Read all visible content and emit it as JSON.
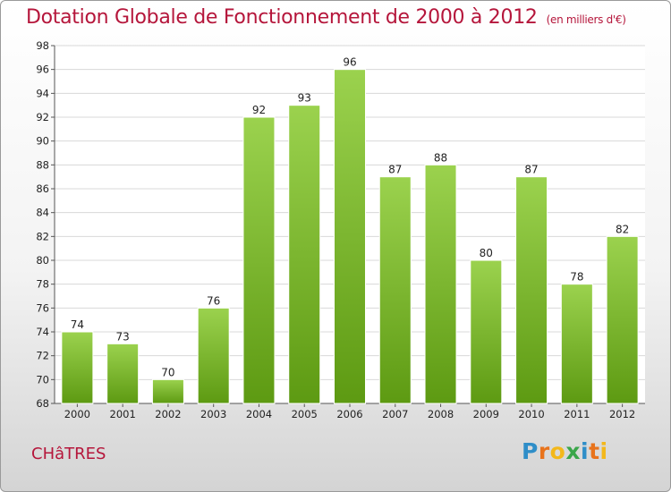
{
  "header": {
    "title": "Dotation Globale de Fonctionnement de 2000 à 2012",
    "subtitle": "(en milliers d'€)"
  },
  "footer": {
    "commune": "CHâTRES",
    "logo_letters": [
      "P",
      "r",
      "o",
      "x",
      "i",
      "t",
      "i"
    ],
    "logo_colors": [
      "#2f8ec8",
      "#e8731c",
      "#f3b81b",
      "#3aa64a",
      "#2f8ec8",
      "#e8731c",
      "#f3b81b"
    ]
  },
  "colors": {
    "title": "#b5163b",
    "bar_light": "#9bd24e",
    "bar_dark": "#5d9a12",
    "grid": "#d8d8d8"
  },
  "chart_data": {
    "type": "bar",
    "title": "Dotation Globale de Fonctionnement de 2000 à 2012",
    "subtitle": "(en milliers d'€)",
    "categories": [
      "2000",
      "2001",
      "2002",
      "2003",
      "2004",
      "2005",
      "2006",
      "2007",
      "2008",
      "2009",
      "2010",
      "2011",
      "2012"
    ],
    "values": [
      74,
      73,
      70,
      76,
      92,
      93,
      96,
      87,
      88,
      80,
      87,
      78,
      82
    ],
    "ylim": [
      68,
      98
    ],
    "yticks": [
      68,
      70,
      72,
      74,
      76,
      78,
      80,
      82,
      84,
      86,
      88,
      90,
      92,
      94,
      96,
      98
    ],
    "grid": true,
    "data_labels": true
  }
}
